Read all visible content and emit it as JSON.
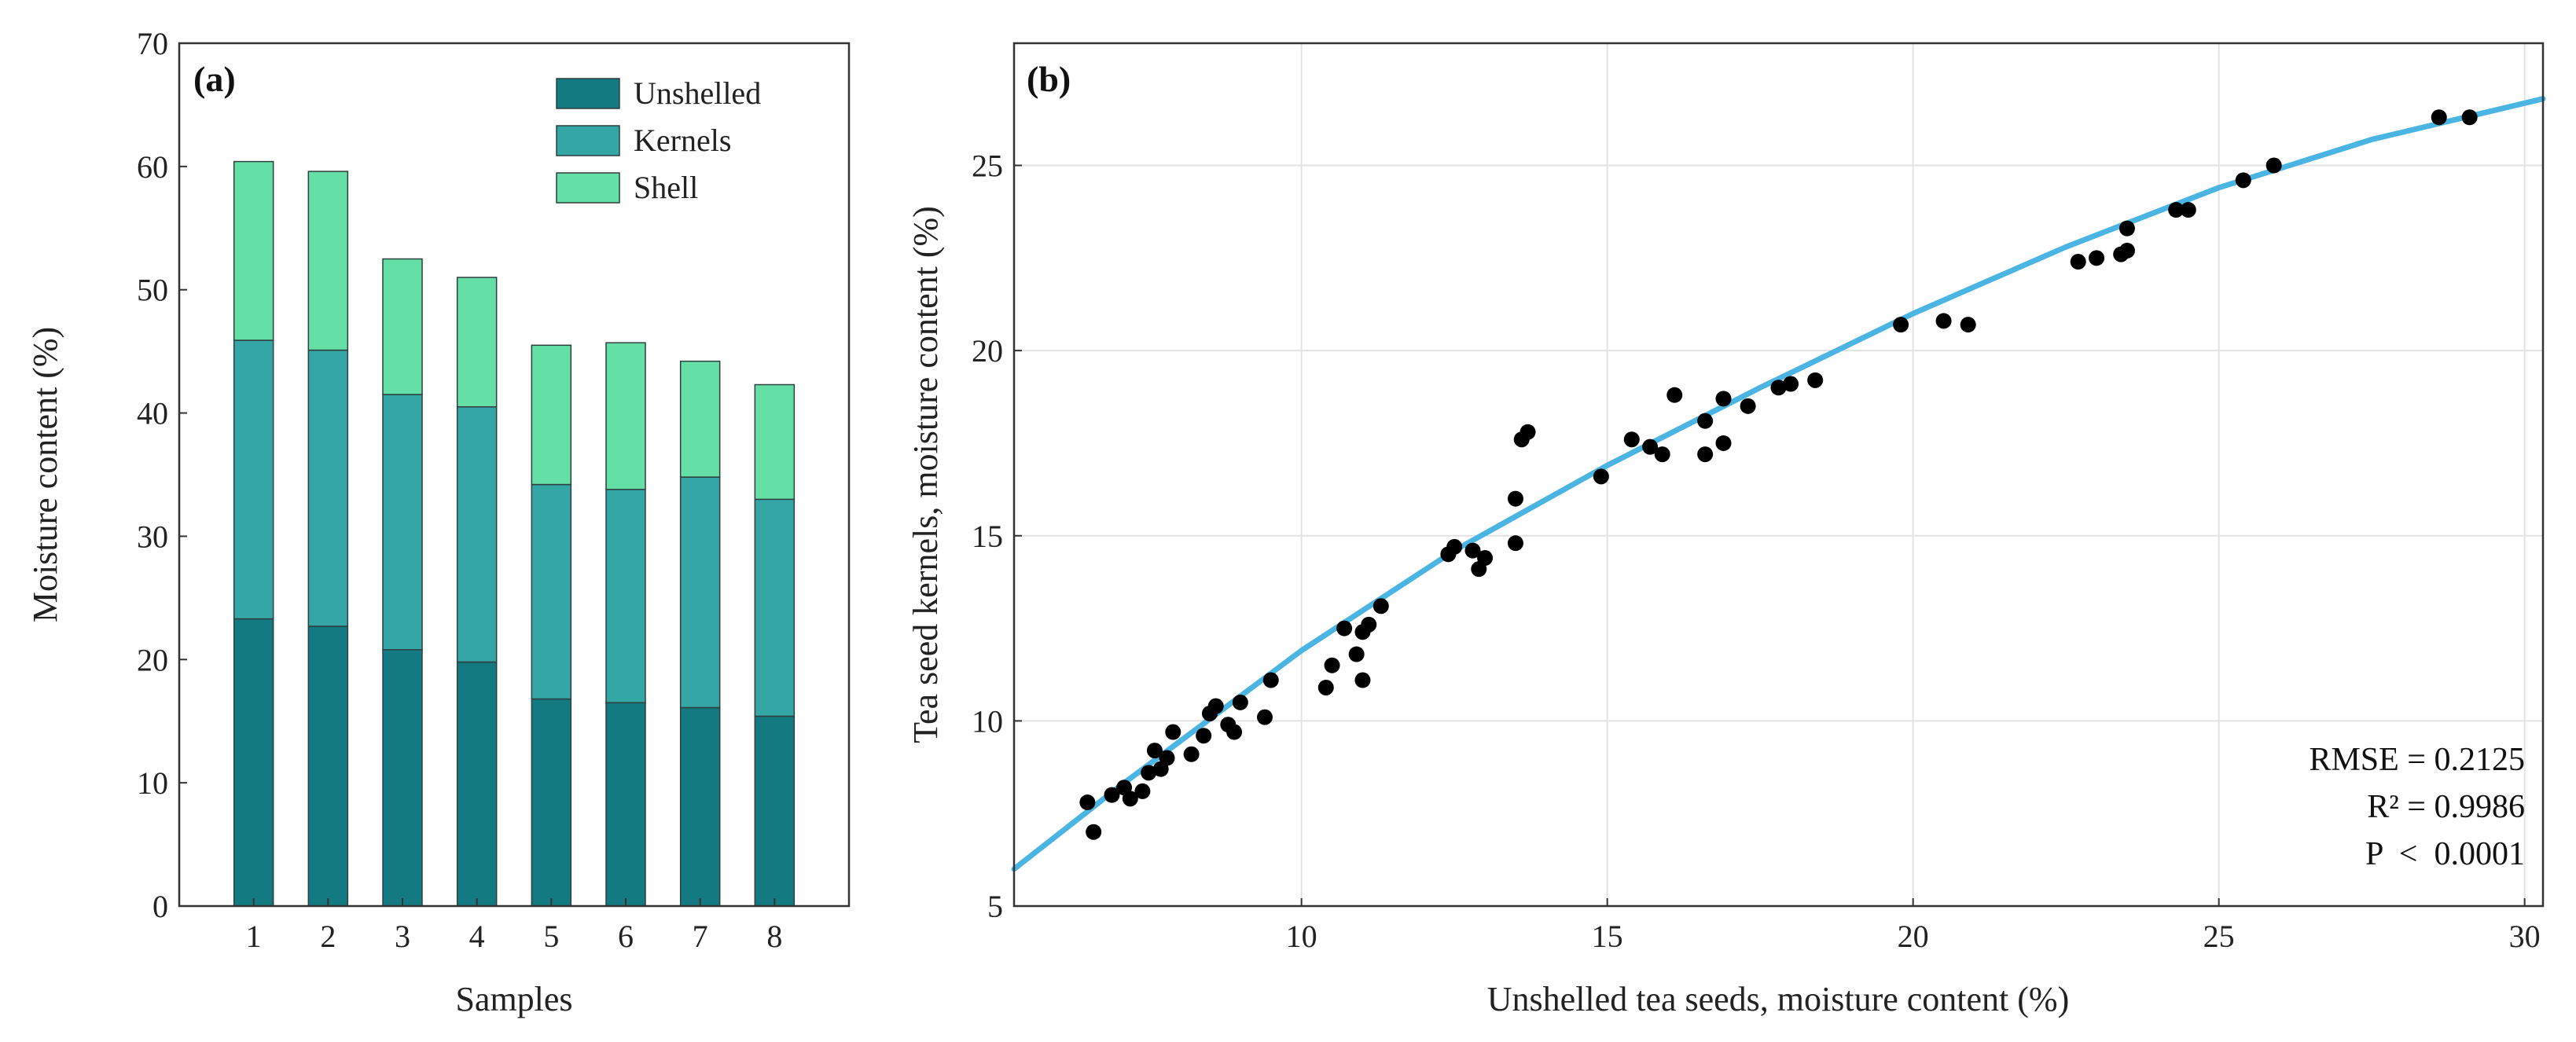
{
  "chart_data": [
    {
      "type": "bar",
      "stacked": true,
      "panel_label": "(a)",
      "categories": [
        "1",
        "2",
        "3",
        "4",
        "5",
        "6",
        "7",
        "8"
      ],
      "series": [
        {
          "name": "Unshelled",
          "color": "#137a82",
          "values": [
            23.3,
            22.7,
            20.8,
            19.8,
            16.8,
            16.5,
            16.1,
            15.4
          ]
        },
        {
          "name": "Kernels",
          "color": "#35a6a6",
          "values": [
            22.6,
            22.4,
            20.7,
            20.7,
            17.4,
            17.3,
            18.7,
            17.6
          ]
        },
        {
          "name": "Shell",
          "color": "#64e0a6",
          "values": [
            14.5,
            14.5,
            11.0,
            10.5,
            11.3,
            11.9,
            9.4,
            9.3
          ]
        }
      ],
      "xlabel": "Samples",
      "ylabel": "Moisture content (%)",
      "ylim": [
        0,
        70
      ],
      "yticks": [
        "0",
        "10",
        "20",
        "30",
        "40",
        "50",
        "60",
        "70"
      ],
      "legend_position": "top-right",
      "grid": false
    },
    {
      "type": "scatter",
      "panel_label": "(b)",
      "xlabel": "Unshelled tea seeds, moisture content (%)",
      "ylabel": "Tea seed kernels, moisture content (%)",
      "xlim": [
        5.3,
        30.3
      ],
      "ylim": [
        5,
        28.3
      ],
      "xticks": [
        "10",
        "15",
        "20",
        "25",
        "30"
      ],
      "yticks": [
        "5",
        "10",
        "15",
        "20",
        "25"
      ],
      "grid": true,
      "point_color": "#000000",
      "fit_color": "#4ab5e3",
      "points": [
        [
          6.5,
          7.8
        ],
        [
          6.6,
          7.0
        ],
        [
          6.9,
          8.0
        ],
        [
          7.1,
          8.2
        ],
        [
          7.2,
          7.9
        ],
        [
          7.4,
          8.1
        ],
        [
          7.5,
          8.6
        ],
        [
          7.6,
          9.2
        ],
        [
          7.7,
          8.7
        ],
        [
          7.8,
          9.0
        ],
        [
          7.9,
          9.7
        ],
        [
          8.2,
          9.1
        ],
        [
          8.4,
          9.6
        ],
        [
          8.5,
          10.2
        ],
        [
          8.6,
          10.4
        ],
        [
          8.8,
          9.9
        ],
        [
          8.9,
          9.7
        ],
        [
          9.0,
          10.5
        ],
        [
          9.4,
          10.1
        ],
        [
          9.5,
          11.1
        ],
        [
          10.4,
          10.9
        ],
        [
          10.5,
          11.5
        ],
        [
          10.7,
          12.5
        ],
        [
          10.9,
          11.8
        ],
        [
          11.0,
          11.1
        ],
        [
          11.0,
          12.4
        ],
        [
          11.1,
          12.6
        ],
        [
          11.3,
          13.1
        ],
        [
          12.4,
          14.5
        ],
        [
          12.5,
          14.7
        ],
        [
          12.8,
          14.6
        ],
        [
          12.9,
          14.1
        ],
        [
          13.0,
          14.4
        ],
        [
          13.5,
          16.0
        ],
        [
          13.5,
          14.8
        ],
        [
          13.6,
          17.6
        ],
        [
          13.7,
          17.8
        ],
        [
          14.9,
          16.6
        ],
        [
          15.4,
          17.6
        ],
        [
          15.7,
          17.4
        ],
        [
          15.9,
          17.2
        ],
        [
          16.1,
          18.8
        ],
        [
          16.6,
          18.1
        ],
        [
          16.6,
          17.2
        ],
        [
          16.9,
          18.7
        ],
        [
          16.9,
          17.5
        ],
        [
          17.3,
          18.5
        ],
        [
          17.8,
          19.0
        ],
        [
          18.0,
          19.1
        ],
        [
          18.4,
          19.2
        ],
        [
          19.8,
          20.7
        ],
        [
          20.5,
          20.8
        ],
        [
          20.9,
          20.7
        ],
        [
          22.7,
          22.4
        ],
        [
          23.0,
          22.5
        ],
        [
          23.4,
          22.6
        ],
        [
          23.5,
          22.7
        ],
        [
          23.5,
          23.3
        ],
        [
          24.3,
          23.8
        ],
        [
          24.5,
          23.8
        ],
        [
          25.4,
          24.6
        ],
        [
          25.9,
          25.0
        ],
        [
          28.6,
          26.3
        ],
        [
          29.1,
          26.3
        ]
      ],
      "fit_curve": {
        "x": [
          5.3,
          7,
          10,
          12.5,
          15,
          17.5,
          20,
          22.5,
          25,
          27.5,
          30.3
        ],
        "y": [
          6.0,
          8.2,
          11.9,
          14.6,
          16.9,
          19.0,
          21.0,
          22.8,
          24.4,
          25.7,
          26.8
        ]
      },
      "stats": [
        "RMSE = 0.2125",
        "R² = 0.9986",
        "P  <  0.0001"
      ]
    }
  ]
}
